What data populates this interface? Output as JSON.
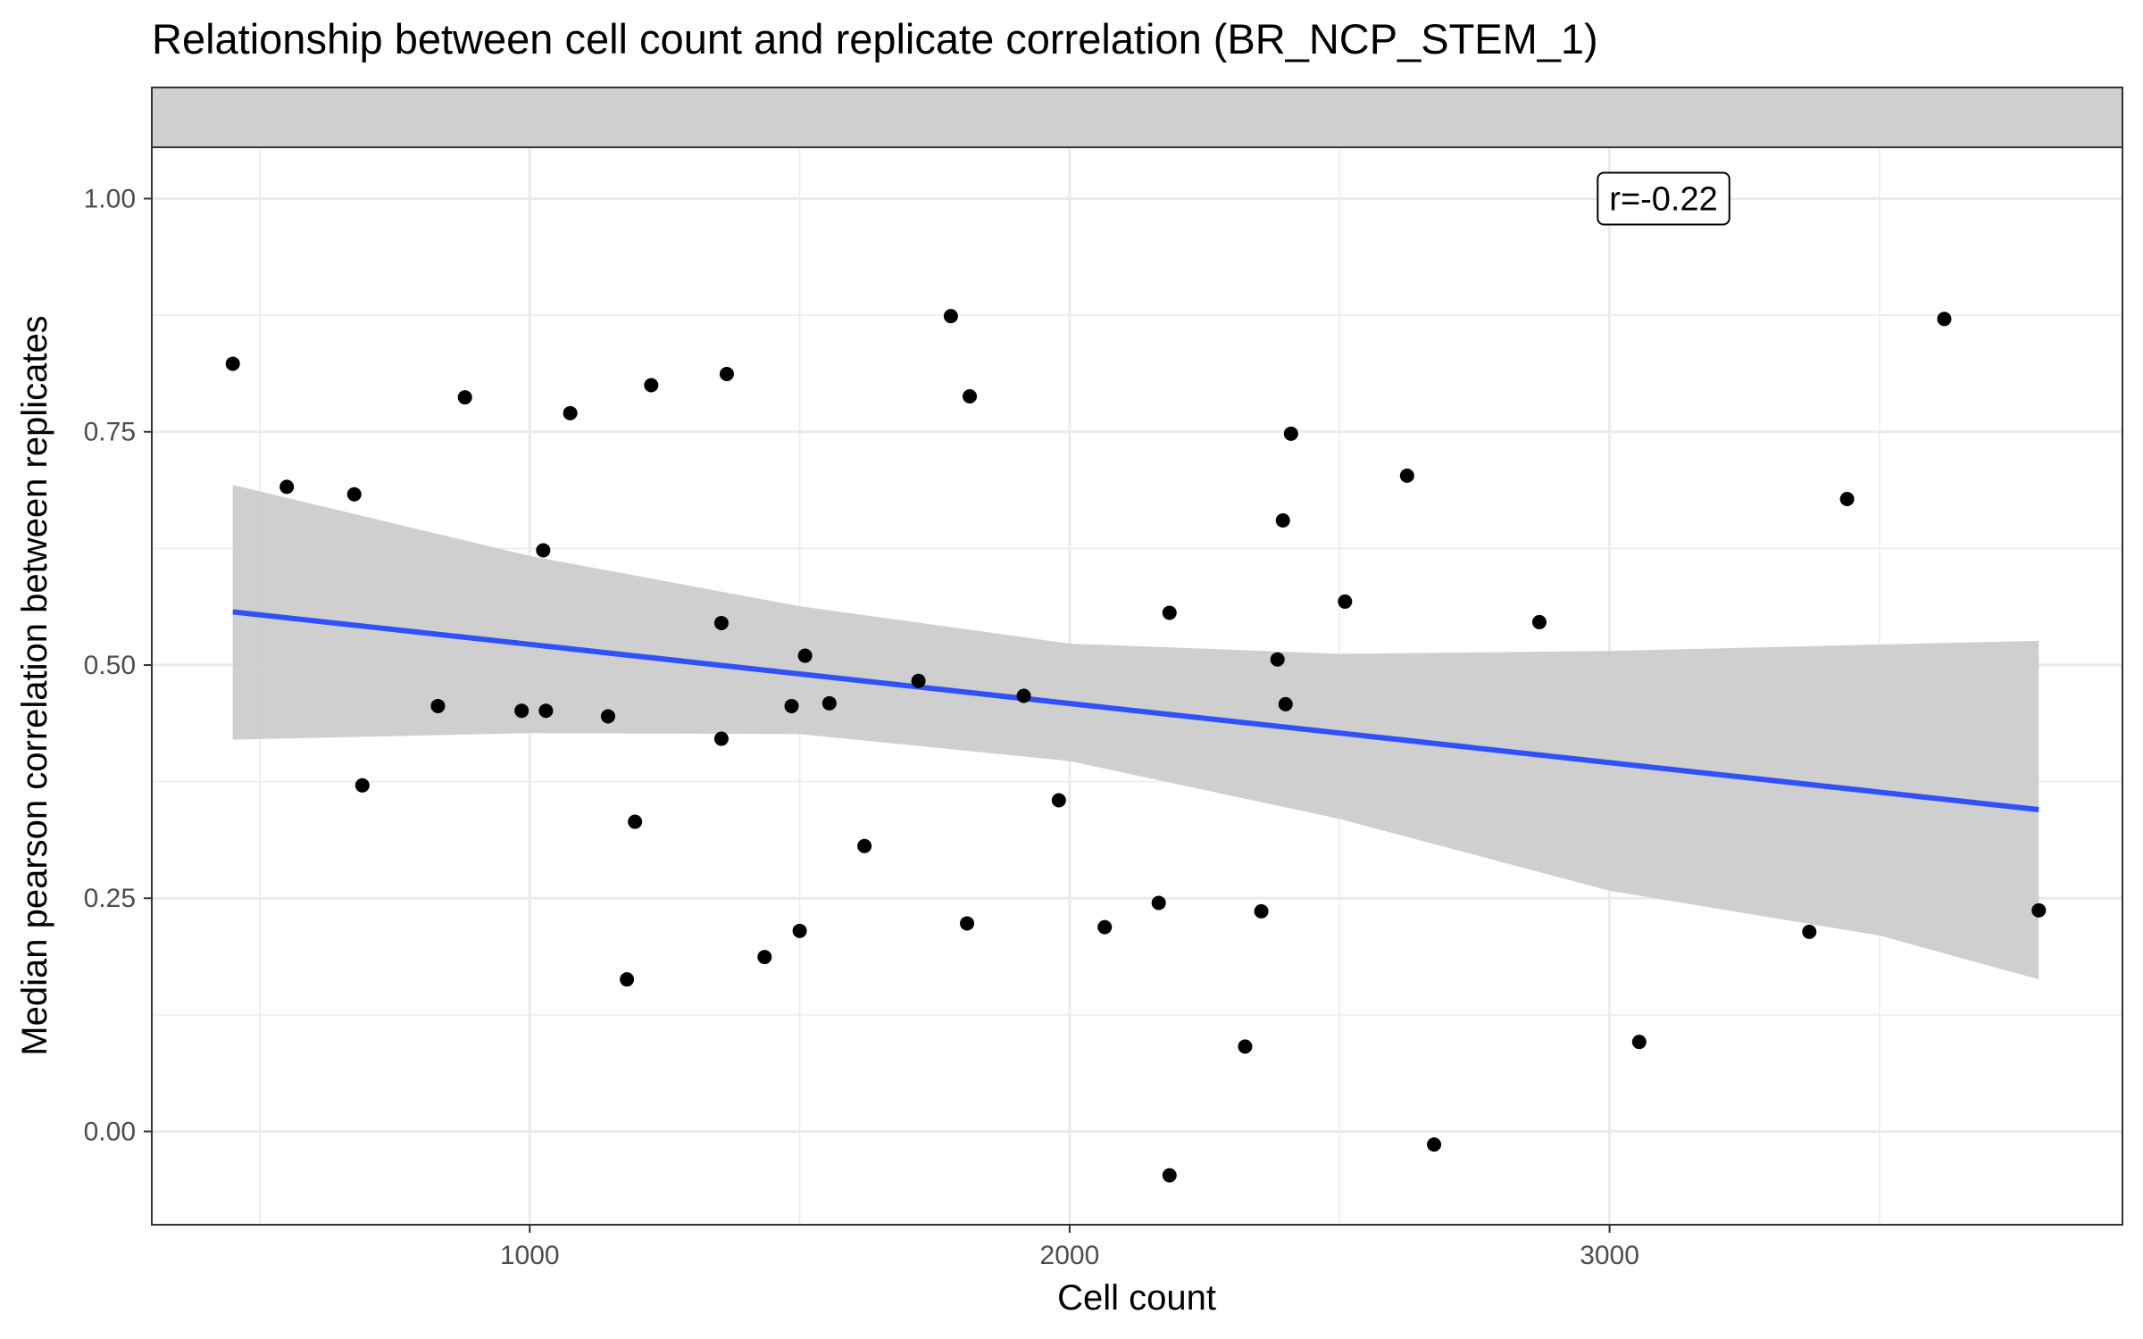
{
  "chart_data": {
    "type": "scatter",
    "title": "Relationship between cell count and replicate correlation (BR_NCP_STEM_1)",
    "xlabel": "Cell count",
    "ylabel": "Median pearson correlation between replicates",
    "xlim": [
      300,
      3950
    ],
    "ylim": [
      -0.1,
      1.055
    ],
    "x_ticks": [
      1000,
      2000,
      3000
    ],
    "x_tick_labels": [
      "1000",
      "2000",
      "3000"
    ],
    "y_ticks": [
      0.0,
      0.25,
      0.5,
      0.75,
      1.0
    ],
    "y_tick_labels": [
      "0.00",
      "0.25",
      "0.50",
      "0.75",
      "1.00"
    ],
    "x_minor_ticks": [
      500,
      1500,
      2500,
      3500
    ],
    "y_minor_ticks": [
      0.125,
      0.375,
      0.625,
      0.875
    ],
    "grid": true,
    "facet_strip": true,
    "annotation": "r=-0.22",
    "colors": {
      "points": "#000000",
      "fit_line": "#3050f8",
      "confidence_band": "#cccccc",
      "strip": "#d0d0d0",
      "grid": "#ebebeb"
    },
    "points": [
      {
        "x": 450,
        "y": 0.823
      },
      {
        "x": 550,
        "y": 0.691
      },
      {
        "x": 675,
        "y": 0.683
      },
      {
        "x": 690,
        "y": 0.371
      },
      {
        "x": 830,
        "y": 0.456
      },
      {
        "x": 880,
        "y": 0.787
      },
      {
        "x": 985,
        "y": 0.451
      },
      {
        "x": 1025,
        "y": 0.623
      },
      {
        "x": 1030,
        "y": 0.451
      },
      {
        "x": 1075,
        "y": 0.77
      },
      {
        "x": 1145,
        "y": 0.445
      },
      {
        "x": 1180,
        "y": 0.163
      },
      {
        "x": 1195,
        "y": 0.332
      },
      {
        "x": 1225,
        "y": 0.8
      },
      {
        "x": 1355,
        "y": 0.545
      },
      {
        "x": 1355,
        "y": 0.421
      },
      {
        "x": 1365,
        "y": 0.812
      },
      {
        "x": 1435,
        "y": 0.187
      },
      {
        "x": 1485,
        "y": 0.456
      },
      {
        "x": 1500,
        "y": 0.215
      },
      {
        "x": 1510,
        "y": 0.51
      },
      {
        "x": 1555,
        "y": 0.459
      },
      {
        "x": 1620,
        "y": 0.306
      },
      {
        "x": 1720,
        "y": 0.483
      },
      {
        "x": 1780,
        "y": 0.874
      },
      {
        "x": 1810,
        "y": 0.223
      },
      {
        "x": 1815,
        "y": 0.788
      },
      {
        "x": 1915,
        "y": 0.467
      },
      {
        "x": 1980,
        "y": 0.355
      },
      {
        "x": 2065,
        "y": 0.219
      },
      {
        "x": 2165,
        "y": 0.245
      },
      {
        "x": 2185,
        "y": 0.556
      },
      {
        "x": 2185,
        "y": -0.047
      },
      {
        "x": 2325,
        "y": 0.091
      },
      {
        "x": 2355,
        "y": 0.236
      },
      {
        "x": 2385,
        "y": 0.506
      },
      {
        "x": 2395,
        "y": 0.655
      },
      {
        "x": 2400,
        "y": 0.458
      },
      {
        "x": 2410,
        "y": 0.748
      },
      {
        "x": 2510,
        "y": 0.568
      },
      {
        "x": 2625,
        "y": 0.703
      },
      {
        "x": 2675,
        "y": -0.014
      },
      {
        "x": 2870,
        "y": 0.546
      },
      {
        "x": 3055,
        "y": 0.096
      },
      {
        "x": 3370,
        "y": 0.214
      },
      {
        "x": 3440,
        "y": 0.678
      },
      {
        "x": 3620,
        "y": 0.871
      },
      {
        "x": 3795,
        "y": 0.237
      }
    ],
    "fit_line": {
      "x": [
        450,
        3795
      ],
      "y": [
        0.557,
        0.345
      ]
    },
    "confidence_band": {
      "x": [
        450,
        1000,
        1500,
        2000,
        2500,
        3000,
        3500,
        3795
      ],
      "upper": [
        0.693,
        0.617,
        0.563,
        0.523,
        0.512,
        0.515,
        0.522,
        0.526
      ],
      "lower": [
        0.42,
        0.427,
        0.426,
        0.397,
        0.335,
        0.258,
        0.21,
        0.163
      ]
    }
  }
}
